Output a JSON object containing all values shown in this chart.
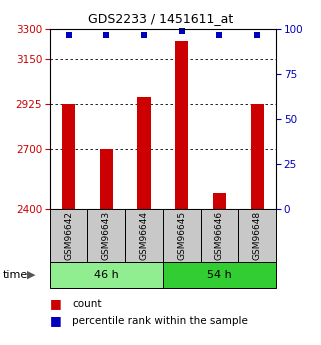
{
  "title": "GDS2233 / 1451611_at",
  "samples": [
    "GSM96642",
    "GSM96643",
    "GSM96644",
    "GSM96645",
    "GSM96646",
    "GSM96648"
  ],
  "counts": [
    2925,
    2700,
    2960,
    3240,
    2480,
    2925
  ],
  "percentiles": [
    97,
    97,
    97,
    99,
    97,
    97
  ],
  "groups": [
    {
      "label": "46 h",
      "indices": [
        0,
        1,
        2
      ],
      "color": "#90EE90"
    },
    {
      "label": "54 h",
      "indices": [
        3,
        4,
        5
      ],
      "color": "#32CD32"
    }
  ],
  "ylim_left": [
    2400,
    3300
  ],
  "ylim_right": [
    0,
    100
  ],
  "yticks_left": [
    2400,
    2700,
    2925,
    3150,
    3300
  ],
  "yticks_right": [
    0,
    25,
    50,
    75,
    100
  ],
  "bar_color": "#CC0000",
  "dot_color": "#0000BB",
  "grid_color": "#000000",
  "bg_color": "#ffffff",
  "title_color": "#000000",
  "left_tick_color": "#CC0000",
  "right_tick_color": "#0000BB",
  "bar_width": 0.35,
  "dot_size": 30,
  "group_color_46": "#90EE90",
  "group_color_54": "#32CD32",
  "label_box_color": "#C8C8C8"
}
